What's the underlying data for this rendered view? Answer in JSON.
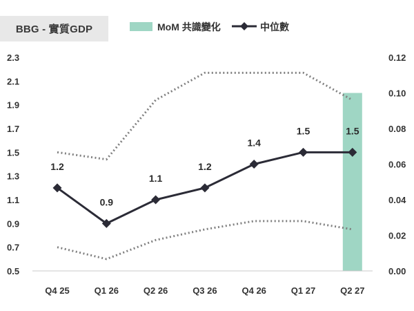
{
  "chart_data": {
    "type": "line",
    "title": "BBG - 實質GDP",
    "categories": [
      "Q4 25",
      "Q1 26",
      "Q2 26",
      "Q3 26",
      "Q4 26",
      "Q1 27",
      "Q2 27"
    ],
    "series": [
      {
        "name": "中位數",
        "axis": "left",
        "style": "solid-diamond",
        "color": "#2b2b36",
        "values": [
          1.2,
          0.9,
          1.1,
          1.2,
          1.4,
          1.5,
          1.5
        ],
        "labels": [
          "1.2",
          "0.9",
          "1.1",
          "1.2",
          "1.4",
          "1.5",
          "1.5"
        ]
      },
      {
        "name": "",
        "axis": "left",
        "style": "dotted",
        "color": "#808080",
        "values": [
          1.5,
          1.44,
          1.94,
          2.17,
          2.17,
          2.17,
          1.94
        ]
      },
      {
        "name": "",
        "axis": "left",
        "style": "dotted",
        "color": "#808080",
        "values": [
          0.7,
          0.6,
          0.76,
          0.85,
          0.92,
          0.92,
          0.85
        ]
      },
      {
        "name": "MoM 共識變化",
        "axis": "right",
        "style": "bar",
        "color": "#9fd6c4",
        "values": [
          0,
          0,
          0,
          0,
          0,
          0,
          0.1
        ]
      }
    ],
    "y_left": {
      "ylim": [
        0.5,
        2.3
      ],
      "ticks": [
        "0.5",
        "0.7",
        "0.9",
        "1.1",
        "1.3",
        "1.5",
        "1.7",
        "1.9",
        "2.1",
        "2.3"
      ]
    },
    "y_right": {
      "ylim": [
        0.0,
        0.12
      ],
      "ticks": [
        "0.00",
        "0.02",
        "0.04",
        "0.06",
        "0.08",
        "0.10",
        "0.12"
      ]
    },
    "legend": {
      "placement": "top",
      "items": [
        "MoM 共識變化",
        "中位數"
      ]
    },
    "grid": false
  }
}
